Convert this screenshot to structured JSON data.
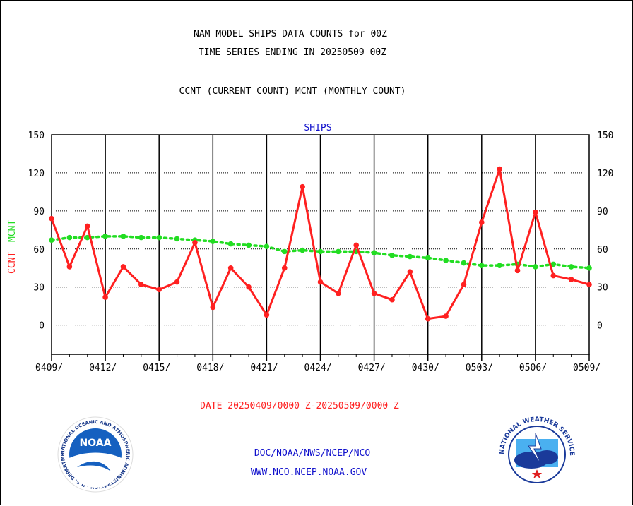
{
  "titles": {
    "line1": "NAM MODEL SHIPS DATA COUNTS for 00Z",
    "line2": "TIME SERIES ENDING IN 20250509 00Z",
    "line3": "CCNT (CURRENT COUNT) MCNT (MONTHLY COUNT)"
  },
  "footer": {
    "date_range": "DATE 20250409/0000 Z-20250509/0000 Z",
    "org": "DOC/NOAA/NWS/NCEP/NCO",
    "url": "WWW.NCO.NCEP.NOAA.GOV"
  },
  "logos": {
    "noaa_text": "NOAA",
    "noaa_ring": "NATIONAL OCEANIC AND ATMOSPHERIC ADMINISTRATION · U.S. DEPARTMENT OF COMMERCE",
    "nws_ring": "NATIONAL WEATHER SERVICE"
  },
  "colors": {
    "ccnt": "#ff2020",
    "mcnt": "#22dd22",
    "title": "#000000",
    "accent_blue": "#1010cc",
    "date_red": "#ff2020"
  },
  "chart_data": {
    "type": "line",
    "panel_title": "SHIPS",
    "ylabel_ccnt": "CCNT",
    "ylabel_mcnt": "MCNT",
    "ylim": [
      -23,
      150
    ],
    "yticks": [
      150,
      120,
      90,
      60,
      30,
      0
    ],
    "xtick_labels": [
      "0409/",
      "0412/",
      "0415/",
      "0418/",
      "0421/",
      "0424/",
      "0427/",
      "0430/",
      "0503/",
      "0506/",
      "0509/"
    ],
    "grid": true,
    "x": [
      "0409",
      "0410",
      "0411",
      "0412",
      "0413",
      "0414",
      "0415",
      "0416",
      "0417",
      "0418",
      "0419",
      "0420",
      "0421",
      "0422",
      "0423",
      "0424",
      "0425",
      "0426",
      "0427",
      "0428",
      "0429",
      "0430",
      "0501",
      "0502",
      "0503",
      "0504",
      "0505",
      "0506",
      "0507",
      "0508",
      "0509"
    ],
    "series": [
      {
        "name": "CCNT",
        "values": [
          84,
          46,
          78,
          22,
          46,
          32,
          28,
          34,
          65,
          14,
          45,
          30,
          8,
          45,
          109,
          34,
          25,
          63,
          25,
          20,
          42,
          5,
          7,
          32,
          81,
          123,
          43,
          89,
          39,
          36,
          32
        ]
      },
      {
        "name": "MCNT",
        "values": [
          67,
          69,
          69,
          70,
          70,
          69,
          69,
          68,
          67,
          66,
          64,
          63,
          62,
          58,
          59,
          58,
          58,
          58,
          57,
          55,
          54,
          53,
          51,
          49,
          47,
          47,
          48,
          46,
          48,
          46,
          45
        ]
      }
    ]
  }
}
